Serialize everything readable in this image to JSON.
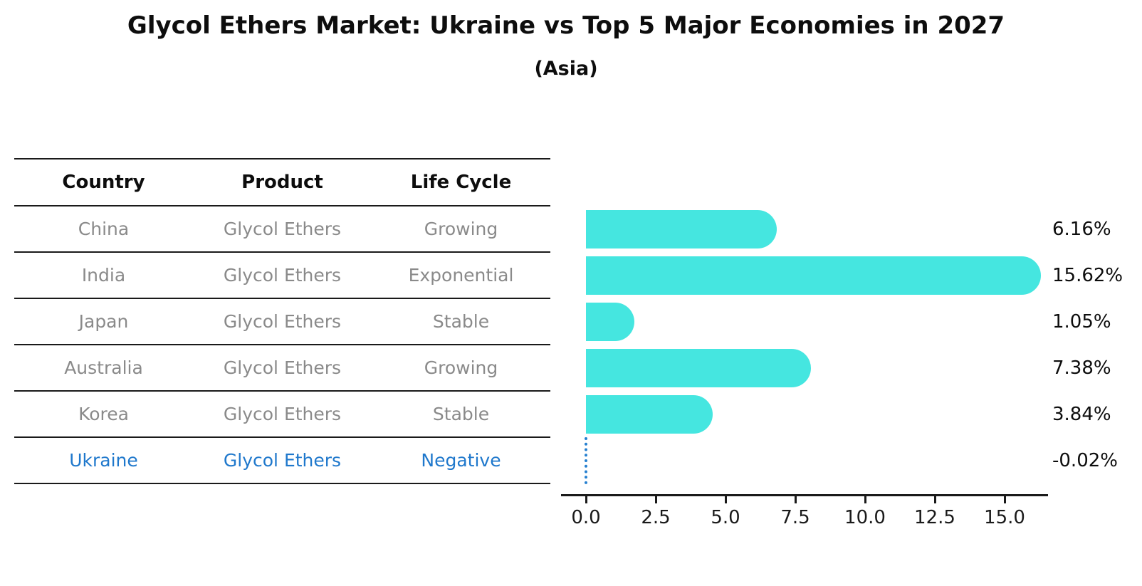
{
  "header": {
    "title": "Glycol Ethers Market: Ukraine vs Top 5 Major Economies in 2027",
    "subtitle": "(Asia)"
  },
  "table": {
    "columns": [
      "Country",
      "Product",
      "Life Cycle"
    ],
    "rows": [
      {
        "country": "China",
        "product": "Glycol Ethers",
        "life_cycle": "Growing",
        "highlight": false
      },
      {
        "country": "India",
        "product": "Glycol Ethers",
        "life_cycle": "Exponential",
        "highlight": false
      },
      {
        "country": "Japan",
        "product": "Glycol Ethers",
        "life_cycle": "Stable",
        "highlight": false
      },
      {
        "country": "Australia",
        "product": "Glycol Ethers",
        "life_cycle": "Growing",
        "highlight": false
      },
      {
        "country": "Korea",
        "product": "Glycol Ethers",
        "life_cycle": "Stable",
        "highlight": false
      },
      {
        "country": "Ukraine",
        "product": "Glycol Ethers",
        "life_cycle": "Negative",
        "highlight": true
      }
    ]
  },
  "chart_data": {
    "type": "bar",
    "orientation": "horizontal",
    "title": "Glycol Ethers Market: Ukraine vs Top 5 Major Economies in 2027",
    "subtitle": "(Asia)",
    "categories": [
      "China",
      "India",
      "Japan",
      "Australia",
      "Korea",
      "Ukraine"
    ],
    "values": [
      6.16,
      15.62,
      1.05,
      7.38,
      3.84,
      -0.02
    ],
    "value_labels": [
      "6.16%",
      "15.62%",
      "1.05%",
      "7.38%",
      "3.84%",
      "-0.02%"
    ],
    "xlabel": "",
    "ylabel": "",
    "x_ticks": [
      "0.0",
      "2.5",
      "5.0",
      "7.5",
      "10.0",
      "12.5",
      "15.0"
    ],
    "x_tick_values": [
      0,
      2.5,
      5,
      7.5,
      10,
      12.5,
      15
    ],
    "xlim": [
      -0.9,
      16.55
    ],
    "grid": false,
    "legend": null,
    "bar_color": "#45e6e0",
    "negative_bar_style": "dotted-line",
    "negative_bar_color": "#2680d0",
    "highlight_text_color": "#1f78cc",
    "axis_color": "#1a1a1a",
    "value_label_color": "#0d0d0d"
  }
}
